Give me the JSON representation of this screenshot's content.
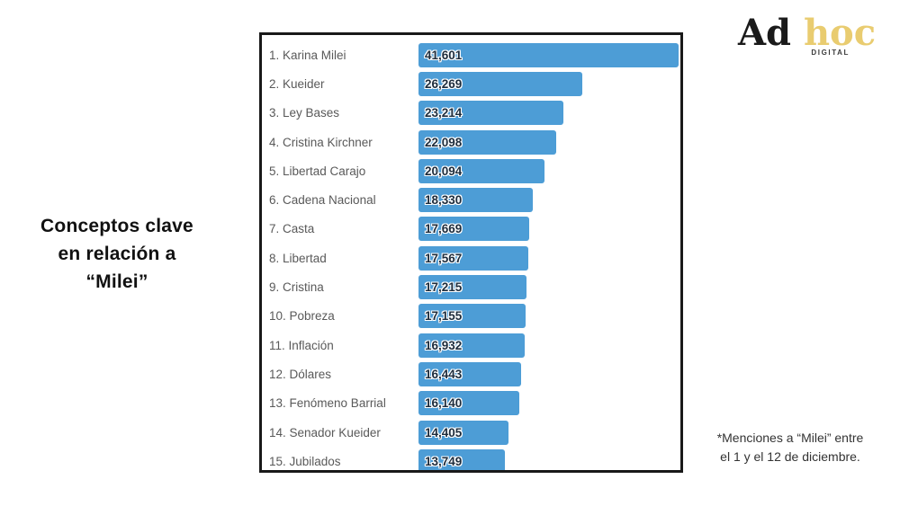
{
  "title": {
    "lines": [
      "Conceptos clave",
      "en relación a",
      "“Milei”"
    ]
  },
  "logo": {
    "word1": "Ad",
    "word2": "hoc",
    "tagline": "DIGITAL",
    "word1_color": "#1a1a1a",
    "word2_color": "#e9cc70"
  },
  "footnote": {
    "lines": [
      "*Menciones a “Milei” entre",
      "el 1 y el 12 de diciembre."
    ]
  },
  "chart_data": {
    "type": "bar",
    "orientation": "horizontal",
    "title": "Conceptos clave en relación a “Milei”",
    "categories": [
      "1. Karina Milei",
      "2. Kueider",
      "3. Ley Bases",
      "4. Cristina Kirchner",
      "5. Libertad Carajo",
      "6. Cadena Nacional",
      "7. Casta",
      "8. Libertad",
      "9. Cristina",
      "10. Pobreza",
      "11. Inflación",
      "12. Dólares",
      "13. Fenómeno Barrial",
      "14. Senador Kueider",
      "15. Jubilados"
    ],
    "values": [
      41601,
      26269,
      23214,
      22098,
      20094,
      18330,
      17669,
      17567,
      17215,
      17155,
      16932,
      16443,
      16140,
      14405,
      13749
    ],
    "value_labels": [
      "41,601",
      "26,269",
      "23,214",
      "22,098",
      "20,094",
      "18,330",
      "17,669",
      "17,567",
      "17,215",
      "17,155",
      "16,932",
      "16,443",
      "16,140",
      "14,405",
      "13,749"
    ],
    "xlabel": "",
    "ylabel": "",
    "xlim": [
      0,
      41601
    ],
    "grid": false,
    "legend": false,
    "bar_color": "#4d9dd6",
    "value_label_color": "#1d2c3c",
    "category_label_color": "#595959",
    "frame_border_color": "#191919"
  }
}
